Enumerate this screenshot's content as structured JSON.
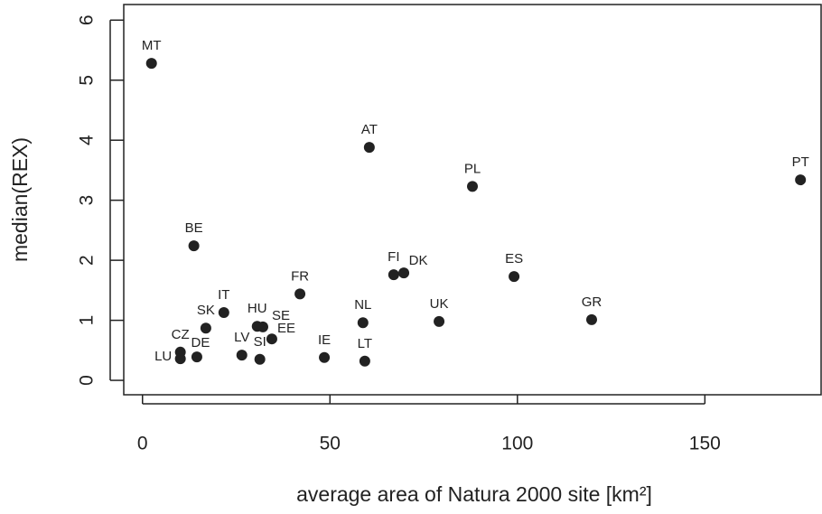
{
  "chart_data": {
    "type": "scatter",
    "x_label": "average area of Natura 2000 site [km²]",
    "y_label": "median(REX)",
    "xlim": [
      -5,
      181
    ],
    "ylim": [
      -0.24,
      6.26
    ],
    "xticks": [
      0,
      50,
      100,
      150
    ],
    "yticks": [
      0,
      1,
      2,
      3,
      4,
      5,
      6
    ],
    "color": "#222222",
    "labels": [
      "MT",
      "AT",
      "PL",
      "PT",
      "BE",
      "FI",
      "DK",
      "ES",
      "FR",
      "IT",
      "GR",
      "NL",
      "UK",
      "SK",
      "HU",
      "SE",
      "EE",
      "CZ",
      "LU",
      "DE",
      "LV",
      "SI",
      "IE",
      "LT"
    ],
    "x": [
      2.4,
      60.5,
      88.0,
      175.5,
      13.7,
      67.0,
      69.7,
      99.1,
      42.0,
      21.7,
      119.8,
      58.8,
      79.1,
      16.9,
      30.6,
      32.1,
      34.5,
      10.1,
      10.1,
      14.5,
      26.5,
      31.3,
      48.5,
      59.3
    ],
    "y": [
      5.28,
      3.88,
      3.23,
      3.34,
      2.24,
      1.76,
      1.79,
      1.73,
      1.44,
      1.13,
      1.01,
      0.96,
      0.98,
      0.87,
      0.9,
      0.89,
      0.69,
      0.47,
      0.36,
      0.39,
      0.42,
      0.35,
      0.38,
      0.32
    ]
  }
}
